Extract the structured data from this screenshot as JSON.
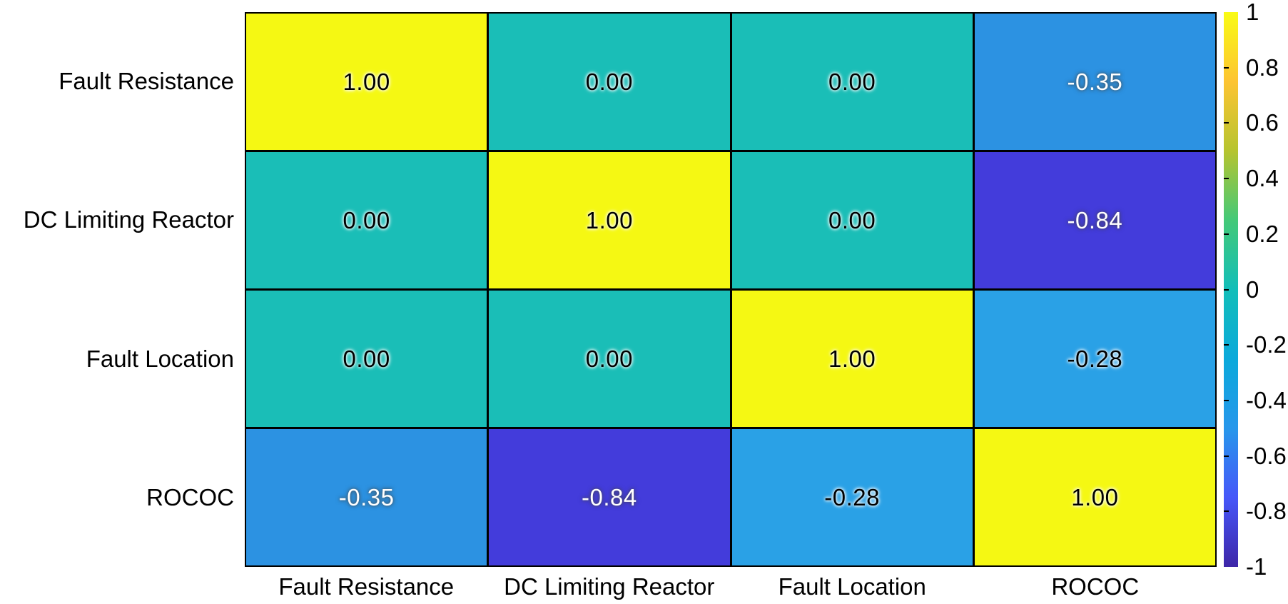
{
  "chart_data": {
    "type": "heatmap",
    "title": "",
    "x_categories": [
      "Fault Resistance",
      "DC Limiting Reactor",
      "Fault Location",
      "ROCOC"
    ],
    "y_categories": [
      "Fault Resistance",
      "DC Limiting Reactor",
      "Fault Location",
      "ROCOC"
    ],
    "matrix": [
      [
        1.0,
        0.0,
        0.0,
        -0.35
      ],
      [
        0.0,
        1.0,
        0.0,
        -0.84
      ],
      [
        0.0,
        0.0,
        1.0,
        -0.28
      ],
      [
        -0.35,
        -0.84,
        -0.28,
        1.0
      ]
    ],
    "cell_labels": [
      [
        "1.00",
        "0.00",
        "0.00",
        "-0.35"
      ],
      [
        "0.00",
        "1.00",
        "0.00",
        "-0.84"
      ],
      [
        "0.00",
        "0.00",
        "1.00",
        "-0.28"
      ],
      [
        "-0.35",
        "-0.84",
        "-0.28",
        "1.00"
      ]
    ],
    "colormap": "parula",
    "value_range": [
      -1,
      1
    ],
    "grid_lines": true,
    "legend_position": "right-colorbar"
  },
  "colorbar": {
    "tick_values": [
      1,
      0.8,
      0.6,
      0.4,
      0.2,
      0,
      -0.2,
      -0.4,
      -0.6,
      -0.8,
      -1
    ],
    "tick_labels": [
      "1",
      "0.8",
      "0.6",
      "0.4",
      "0.2",
      "0",
      "-0.2",
      "-0.4",
      "-0.6",
      "-0.8",
      "-1"
    ]
  },
  "style": {
    "background_color": "#FFFFFF",
    "grid_line_color": "#000000",
    "axis_text_color": "#000000",
    "cell_colors": [
      [
        "#F5F813",
        "#1ABEB7",
        "#1ABEB7",
        "#2C92E2"
      ],
      [
        "#1ABEB7",
        "#F5F813",
        "#1ABEB7",
        "#433CDB"
      ],
      [
        "#1ABEB7",
        "#1ABEB7",
        "#F5F813",
        "#2AA1E6"
      ],
      [
        "#2C92E2",
        "#433CDB",
        "#2AA1E6",
        "#F5F813"
      ]
    ],
    "cell_text_tones": [
      [
        "dark",
        "dark",
        "dark",
        "light"
      ],
      [
        "dark",
        "dark",
        "dark",
        "light"
      ],
      [
        "dark",
        "dark",
        "dark",
        "dark"
      ],
      [
        "light",
        "light",
        "dark",
        "dark"
      ]
    ],
    "colorbar_gradient_top_to_bottom": [
      "#F9FB15",
      "#FDC432",
      "#B6C42F",
      "#44C978",
      "#12BEB9",
      "#0BA9DB",
      "#2797EB",
      "#4657F9",
      "#3E26A8"
    ]
  }
}
